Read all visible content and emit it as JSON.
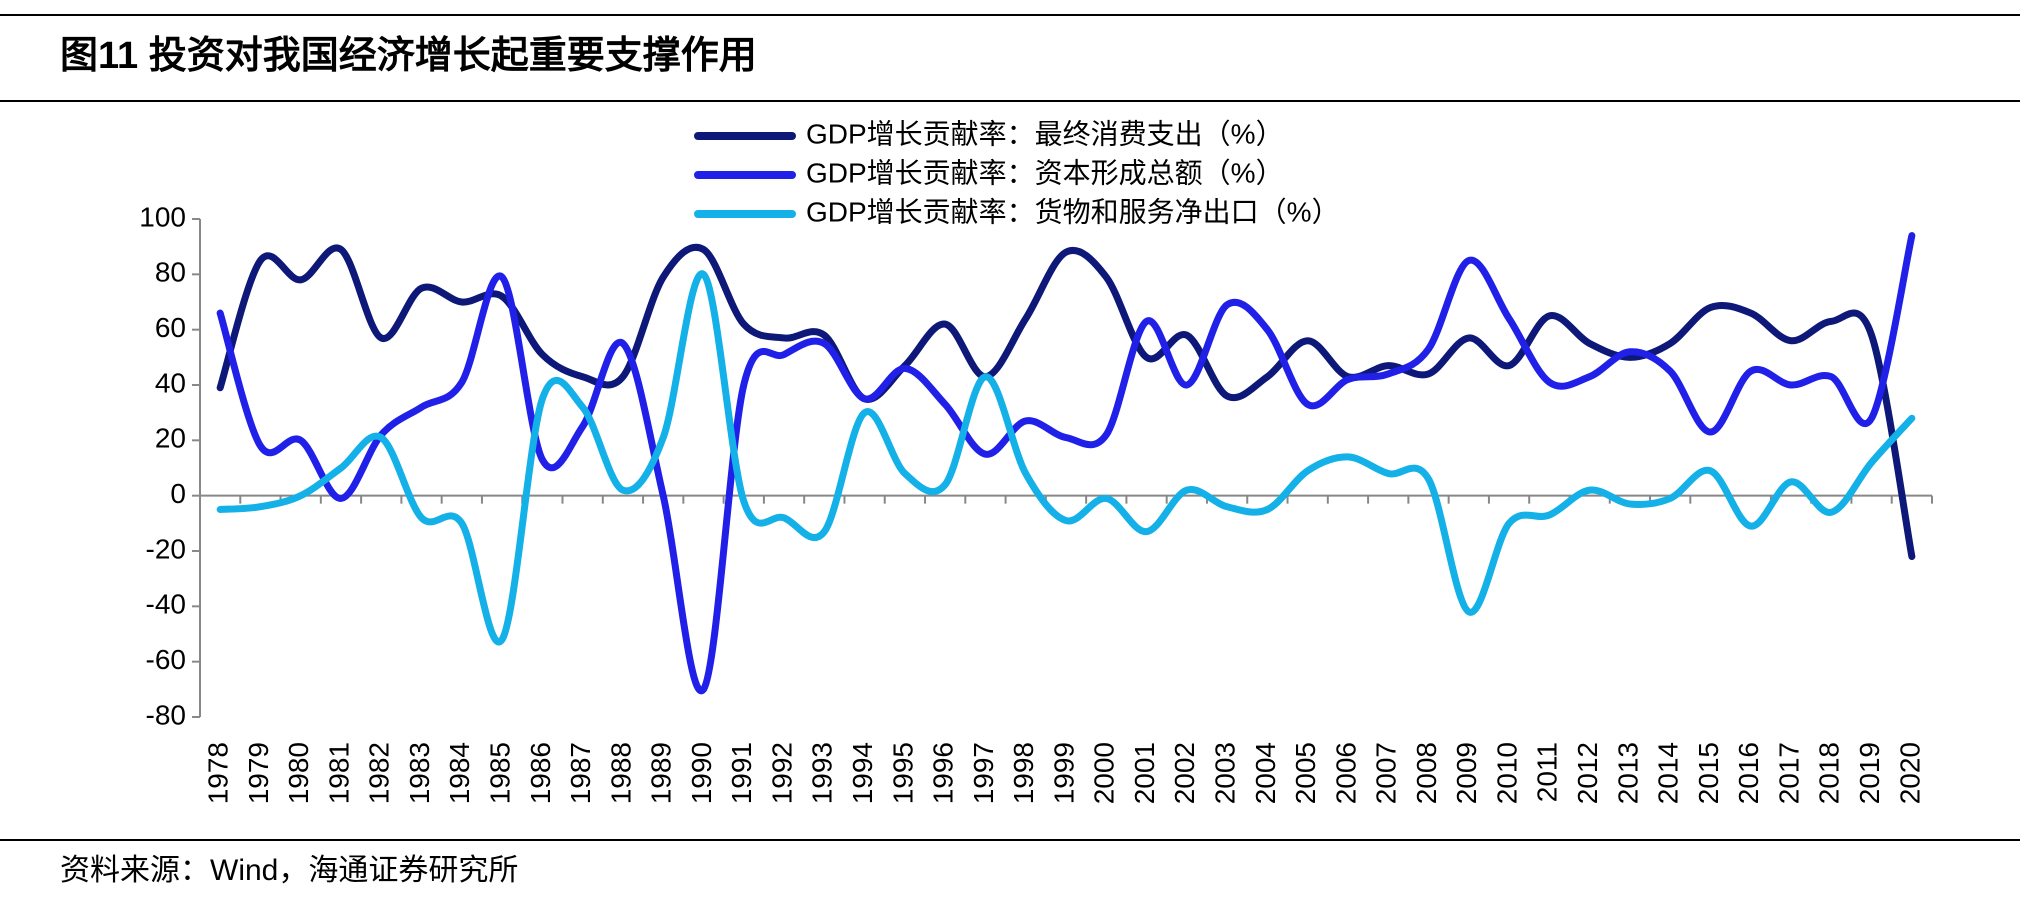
{
  "chart_data": {
    "type": "line",
    "title": "图11 投资对我国经济增长起重要支撑作用",
    "source": "资料来源：Wind，海通证券研究所",
    "categories": [
      "1978",
      "1979",
      "1980",
      "1981",
      "1982",
      "1983",
      "1984",
      "1985",
      "1986",
      "1987",
      "1988",
      "1989",
      "1990",
      "1991",
      "1992",
      "1993",
      "1994",
      "1995",
      "1996",
      "1997",
      "1998",
      "1999",
      "2000",
      "2001",
      "2002",
      "2003",
      "2004",
      "2005",
      "2006",
      "2007",
      "2008",
      "2009",
      "2010",
      "2011",
      "2012",
      "2013",
      "2014",
      "2015",
      "2016",
      "2017",
      "2018",
      "2019",
      "2020"
    ],
    "series": [
      {
        "name": "GDP增长贡献率：最终消费支出（%）",
        "color": "#0d1878",
        "values": [
          39,
          85,
          78,
          89,
          57,
          75,
          70,
          72,
          51,
          43,
          43,
          79,
          89,
          62,
          57,
          58,
          35,
          47,
          62,
          43,
          64,
          88,
          79,
          50,
          58,
          36,
          43,
          56,
          43,
          47,
          44,
          57,
          47,
          65,
          55,
          50,
          55,
          68,
          66,
          56,
          63,
          58,
          -22
        ]
      },
      {
        "name": "GDP增长贡献率：资本形成总额（%）",
        "color": "#2020e8",
        "values": [
          66,
          18,
          20,
          -1,
          22,
          32,
          41,
          79,
          13,
          25,
          55,
          0,
          -70,
          40,
          51,
          55,
          35,
          46,
          33,
          15,
          27,
          21,
          22,
          63,
          40,
          69,
          60,
          33,
          42,
          44,
          53,
          85,
          64,
          41,
          43,
          52,
          45,
          23,
          45,
          40,
          43,
          28,
          94
        ]
      },
      {
        "name": "GDP增长贡献率：货物和服务净出口（%）",
        "color": "#14b0e8",
        "values": [
          -5,
          -4,
          0,
          10,
          21,
          -8,
          -10,
          -52,
          35,
          32,
          2,
          21,
          80,
          -2,
          -8,
          -13,
          30,
          8,
          4,
          43,
          8,
          -9,
          -1,
          -13,
          2,
          -4,
          -5,
          9,
          14,
          8,
          6,
          -42,
          -10,
          -7,
          2,
          -3,
          -1,
          9,
          -11,
          5,
          -6,
          12,
          28
        ]
      }
    ],
    "ylim": [
      -80,
      100
    ],
    "yticks": [
      -80,
      -60,
      -40,
      -20,
      0,
      20,
      40,
      60,
      80,
      100
    ]
  }
}
